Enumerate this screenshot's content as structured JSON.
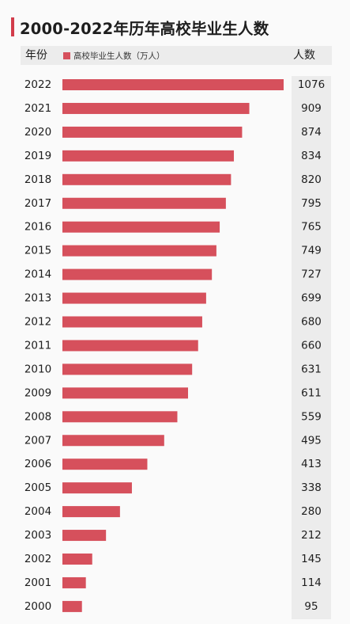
{
  "title": "2000-2022年历年高校毕业生人数",
  "header": {
    "year_label": "年份",
    "legend_label": "高校毕业生人数（万人）",
    "people_label": "人数"
  },
  "colors": {
    "bar": "#d6505c",
    "accent": "#d23c4b",
    "band": "#ececec"
  },
  "chart_data": {
    "type": "bar",
    "orientation": "horizontal",
    "title": "2000-2022年历年高校毕业生人数",
    "xlabel": "",
    "ylabel": "年份",
    "categories": [
      "2022",
      "2021",
      "2020",
      "2019",
      "2018",
      "2017",
      "2016",
      "2015",
      "2014",
      "2013",
      "2012",
      "2011",
      "2010",
      "2009",
      "2008",
      "2007",
      "2006",
      "2005",
      "2004",
      "2003",
      "2002",
      "2001",
      "2000"
    ],
    "series": [
      {
        "name": "高校毕业生人数（万人）",
        "values": [
          1076,
          909,
          874,
          834,
          820,
          795,
          765,
          749,
          727,
          699,
          680,
          660,
          631,
          611,
          559,
          495,
          413,
          338,
          280,
          212,
          145,
          114,
          95
        ]
      }
    ],
    "xlim": [
      0,
      1076
    ],
    "grid": false,
    "legend": "top"
  }
}
